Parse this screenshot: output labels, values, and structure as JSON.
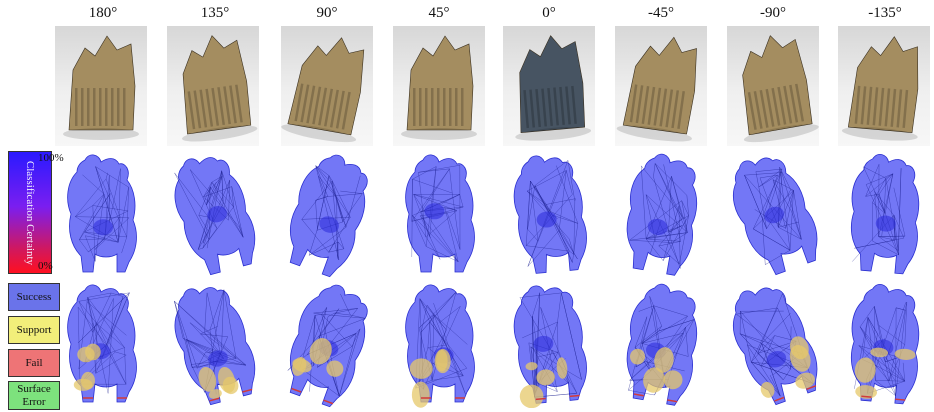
{
  "angles": [
    "180°",
    "135°",
    "90°",
    "45°",
    "0°",
    "-45°",
    "-90°",
    "-135°"
  ],
  "colorbar": {
    "title": "Classification Certainty",
    "max_label": "100%",
    "min_label": "0%"
  },
  "legend": [
    {
      "label": "Success",
      "color": "#6a73ea"
    },
    {
      "label": "Support",
      "color": "#f2ee7a"
    },
    {
      "label": "Fail",
      "color": "#ee7476"
    },
    {
      "label": "Surface Error",
      "color": "#7de27d"
    }
  ],
  "colors": {
    "mesh_blue": "#5a5ff5",
    "support_yellow": "#e6c86a",
    "print_tan": "#a48d60",
    "print_dark": "#475462"
  }
}
